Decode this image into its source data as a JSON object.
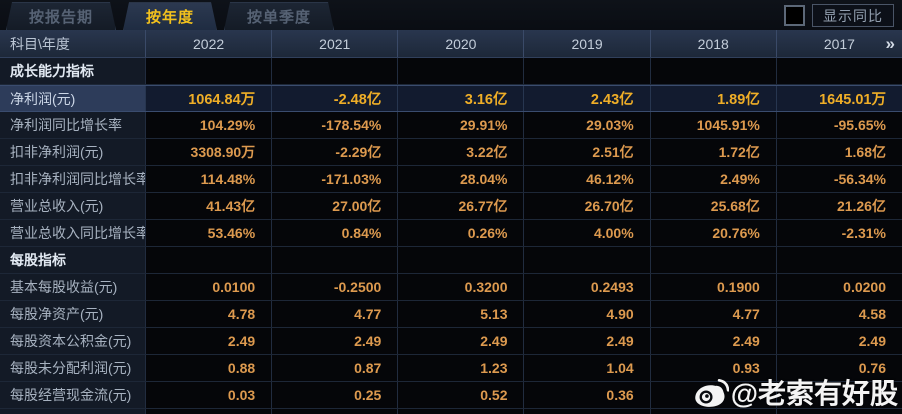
{
  "tabs": [
    {
      "name": "by-report-period",
      "label": "按报告期",
      "active": false
    },
    {
      "name": "by-year",
      "label": "按年度",
      "active": true
    },
    {
      "name": "by-quarter",
      "label": "按单季度",
      "active": false
    }
  ],
  "controls": {
    "show_yoy_label": "显示同比",
    "checkbox_checked": false
  },
  "colors": {
    "accent_gold": "#f2c11d",
    "value_orange": "#dd9a4f",
    "highlight_value": "#efae27",
    "header_bg": "#27334a"
  },
  "table": {
    "corner_label": "科目\\年度",
    "years": [
      "2022",
      "2021",
      "2020",
      "2019",
      "2018",
      "2017"
    ],
    "more_years_icon": "»",
    "rows": [
      {
        "type": "section",
        "label": "成长能力指标",
        "values": [
          "",
          "",
          "",
          "",
          "",
          ""
        ]
      },
      {
        "type": "data",
        "highlight": true,
        "label": "净利润(元)",
        "values": [
          "1064.84万",
          "-2.48亿",
          "3.16亿",
          "2.43亿",
          "1.89亿",
          "1645.01万"
        ]
      },
      {
        "type": "data",
        "label": "净利润同比增长率",
        "values": [
          "104.29%",
          "-178.54%",
          "29.91%",
          "29.03%",
          "1045.91%",
          "-95.65%"
        ]
      },
      {
        "type": "data",
        "label": "扣非净利润(元)",
        "values": [
          "3308.90万",
          "-2.29亿",
          "3.22亿",
          "2.51亿",
          "1.72亿",
          "1.68亿"
        ]
      },
      {
        "type": "data",
        "label": "扣非净利润同比增长率",
        "values": [
          "114.48%",
          "-171.03%",
          "28.04%",
          "46.12%",
          "2.49%",
          "-56.34%"
        ]
      },
      {
        "type": "data",
        "label": "营业总收入(元)",
        "values": [
          "41.43亿",
          "27.00亿",
          "26.77亿",
          "26.70亿",
          "25.68亿",
          "21.26亿"
        ]
      },
      {
        "type": "data",
        "label": "营业总收入同比增长率",
        "values": [
          "53.46%",
          "0.84%",
          "0.26%",
          "4.00%",
          "20.76%",
          "-2.31%"
        ]
      },
      {
        "type": "section",
        "label": "每股指标",
        "values": [
          "",
          "",
          "",
          "",
          "",
          ""
        ]
      },
      {
        "type": "data",
        "label": "基本每股收益(元)",
        "values": [
          "0.0100",
          "-0.2500",
          "0.3200",
          "0.2493",
          "0.1900",
          "0.0200"
        ]
      },
      {
        "type": "data",
        "label": "每股净资产(元)",
        "values": [
          "4.78",
          "4.77",
          "5.13",
          "4.90",
          "4.77",
          "4.58"
        ]
      },
      {
        "type": "data",
        "label": "每股资本公积金(元)",
        "values": [
          "2.49",
          "2.49",
          "2.49",
          "2.49",
          "2.49",
          "2.49"
        ]
      },
      {
        "type": "data",
        "label": "每股未分配利润(元)",
        "values": [
          "0.88",
          "0.87",
          "1.23",
          "1.04",
          "0.93",
          "0.76"
        ]
      },
      {
        "type": "data",
        "label": "每股经营现金流(元)",
        "values": [
          "0.03",
          "0.25",
          "0.52",
          "0.36",
          "",
          ""
        ]
      }
    ]
  },
  "watermark": {
    "icon": "weibo-icon",
    "handle": "@老索有好股"
  }
}
